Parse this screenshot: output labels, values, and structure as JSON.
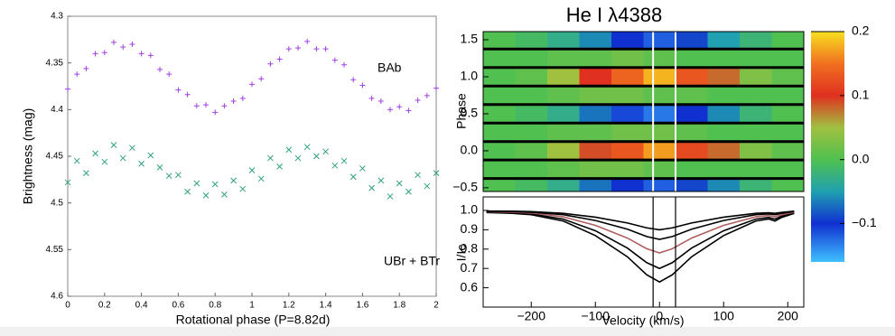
{
  "chart_data": [
    {
      "type": "scatter",
      "xlabel": "Rotational phase (P=8.82d)",
      "ylabel": "Brightness (mag)",
      "xlim": [
        0,
        2
      ],
      "xticks": [
        0,
        0.2,
        0.4,
        0.6,
        0.8,
        1,
        1.2,
        1.4,
        1.6,
        1.8,
        2
      ],
      "ylim": [
        4.3,
        4.6
      ],
      "yticks": [
        4.3,
        4.35,
        4.4,
        4.45,
        4.5,
        4.55,
        4.6
      ],
      "x": [
        0,
        0.05,
        0.1,
        0.15,
        0.2,
        0.25,
        0.3,
        0.35,
        0.4,
        0.45,
        0.5,
        0.55,
        0.6,
        0.65,
        0.7,
        0.75,
        0.8,
        0.85,
        0.9,
        0.95,
        1,
        1.05,
        1.1,
        1.15,
        1.2,
        1.25,
        1.3,
        1.35,
        1.4,
        1.45,
        1.5,
        1.55,
        1.6,
        1.65,
        1.7,
        1.75,
        1.8,
        1.85,
        1.9,
        1.95,
        2
      ],
      "series": [
        {
          "name": "BAb",
          "color": "#a040e0",
          "marker": "plus",
          "values": [
            4.378,
            4.362,
            4.356,
            4.34,
            4.339,
            4.328,
            4.333,
            4.33,
            4.34,
            4.342,
            4.357,
            4.362,
            4.379,
            4.384,
            4.396,
            4.395,
            4.403,
            4.396,
            4.391,
            4.388,
            4.373,
            4.367,
            4.351,
            4.346,
            4.335,
            4.334,
            4.327,
            4.335,
            4.335,
            4.347,
            4.352,
            4.368,
            4.374,
            4.388,
            4.391,
            4.4,
            4.397,
            4.401,
            4.39,
            4.385,
            4.377
          ]
        },
        {
          "name": "UBr + BTr",
          "color": "#30a080",
          "marker": "cross",
          "values": [
            4.478,
            4.455,
            4.468,
            4.447,
            4.456,
            4.438,
            4.452,
            4.441,
            4.458,
            4.449,
            4.462,
            4.471,
            4.47,
            4.488,
            4.479,
            4.492,
            4.48,
            4.491,
            4.476,
            4.485,
            4.465,
            4.474,
            4.452,
            4.461,
            4.443,
            4.452,
            4.44,
            4.45,
            4.445,
            4.46,
            4.455,
            4.472,
            4.463,
            4.484,
            4.476,
            4.493,
            4.479,
            4.488,
            4.47,
            4.482,
            4.468
          ]
        }
      ]
    },
    {
      "type": "heatmap",
      "title": "He I λ4388",
      "ylabel": "Phase",
      "xlim": [
        -275,
        225
      ],
      "ylim": [
        -0.55,
        1.61
      ],
      "yticks": [
        {
          "value": -0.5,
          "label": "−0.5"
        },
        {
          "value": 0,
          "label": "0.0"
        },
        0.5,
        {
          "value": 1,
          "label": "1.0"
        },
        1.5
      ],
      "velocities": [
        -250,
        -200,
        -150,
        -100,
        -50,
        0,
        50,
        100,
        150,
        200
      ],
      "phases": [
        -0.5,
        -0.25,
        0,
        0.25,
        0.5,
        0.75,
        1,
        1.25,
        1.5
      ],
      "z": [
        [
          0,
          -0.01,
          -0.03,
          -0.07,
          -0.1,
          -0.12,
          -0.09,
          -0.06,
          -0.02,
          0
        ],
        [
          0,
          0,
          0.01,
          0.02,
          0.02,
          0.01,
          0,
          0,
          0,
          0
        ],
        [
          0,
          0.01,
          0.05,
          0.09,
          0.13,
          0.17,
          0.12,
          0.08,
          0.03,
          0.01
        ],
        [
          0,
          0,
          0.01,
          0.01,
          0.02,
          0.02,
          0.01,
          0,
          0,
          0
        ],
        [
          0,
          -0.01,
          -0.03,
          -0.07,
          -0.11,
          -0.13,
          -0.1,
          -0.06,
          -0.02,
          0
        ],
        [
          0,
          0,
          0.01,
          0.02,
          0.02,
          0.01,
          0.01,
          0,
          0,
          0
        ],
        [
          0,
          0.01,
          0.05,
          0.1,
          0.14,
          0.18,
          0.13,
          0.08,
          0.03,
          0.01
        ],
        [
          0,
          0,
          0.01,
          0.01,
          0.02,
          0.01,
          0,
          0,
          0,
          0
        ],
        [
          0,
          -0.01,
          -0.03,
          -0.06,
          -0.1,
          -0.12,
          -0.09,
          -0.05,
          -0.02,
          0
        ]
      ],
      "colorscale": [
        [
          -0.16,
          "#40c0ff"
        ],
        [
          -0.1,
          "#1030d0"
        ],
        [
          -0.05,
          "#20a0b0"
        ],
        [
          0,
          "#50c050"
        ],
        [
          0.05,
          "#a0c040"
        ],
        [
          0.1,
          "#e03020"
        ],
        [
          0.15,
          "#f07020"
        ],
        [
          0.2,
          "#f8e020"
        ]
      ],
      "clim": [
        -0.16,
        0.2
      ],
      "cbar_ticks": [
        0.2,
        0.1,
        {
          "value": 0,
          "label": "0.0"
        },
        {
          "value": -0.1,
          "label": "−0.1"
        }
      ],
      "vlines": [
        -10,
        25
      ]
    },
    {
      "type": "line",
      "xlabel": "Velocity (km/s)",
      "ylabel": "I/Ic",
      "xlim": [
        -275,
        225
      ],
      "xticks": [
        {
          "value": -200,
          "label": "−200"
        },
        {
          "value": -100,
          "label": "−100"
        },
        0,
        100,
        200
      ],
      "ylim": [
        0.5,
        1.07
      ],
      "yticks": [
        0.6,
        0.7,
        0.8,
        0.9,
        {
          "value": 1,
          "label": "1.0"
        }
      ],
      "x": [
        -270,
        -230,
        -200,
        -150,
        -100,
        -50,
        -20,
        0,
        20,
        50,
        100,
        150,
        170,
        180,
        190,
        210
      ],
      "series": [
        {
          "color": "#000000",
          "values": [
            0.989,
            0.985,
            0.978,
            0.945,
            0.87,
            0.76,
            0.667,
            0.63,
            0.667,
            0.76,
            0.87,
            0.945,
            0.956,
            0.945,
            0.963,
            0.985
          ]
        },
        {
          "color": "#000000",
          "values": [
            0.991,
            0.988,
            0.982,
            0.955,
            0.895,
            0.805,
            0.73,
            0.7,
            0.73,
            0.805,
            0.895,
            0.955,
            0.964,
            0.955,
            0.97,
            0.988
          ]
        },
        {
          "color": "#b06060",
          "values": [
            0.993,
            0.991,
            0.987,
            0.967,
            0.923,
            0.857,
            0.802,
            0.78,
            0.802,
            0.857,
            0.923,
            0.967,
            0.974,
            0.967,
            0.978,
            0.991
          ]
        },
        {
          "color": "#000000",
          "values": [
            0.995,
            0.994,
            0.991,
            0.978,
            0.948,
            0.903,
            0.865,
            0.85,
            0.865,
            0.903,
            0.948,
            0.978,
            0.982,
            0.978,
            0.985,
            0.994
          ]
        },
        {
          "color": "#000000",
          "values": [
            0.997,
            0.996,
            0.994,
            0.985,
            0.965,
            0.935,
            0.91,
            0.9,
            0.91,
            0.935,
            0.965,
            0.985,
            0.988,
            0.985,
            0.99,
            0.996
          ]
        }
      ],
      "vlines": [
        -10,
        25
      ]
    }
  ]
}
